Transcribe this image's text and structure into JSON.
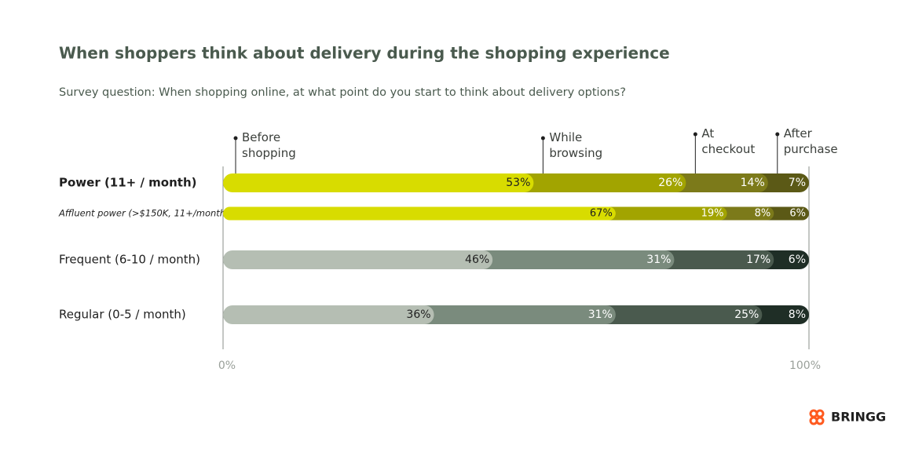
{
  "chart_data": {
    "type": "stacked-bar",
    "title": "When shoppers think about delivery during the shopping experience",
    "subtitle": "Survey question: When shopping online, at what point do you start to think about delivery options?",
    "categories": [
      "Power (11+ / month)",
      "Affluent power (>$150K, 11+/month)",
      "Frequent (6-10 / month)",
      "Regular (0-5 / month)"
    ],
    "series": [
      {
        "name": "Before shopping",
        "colors": [
          "#d8dc00",
          "#d8dc00",
          "#b5beb3",
          "#b5beb3"
        ],
        "values": [
          53,
          67,
          46,
          36
        ],
        "value_labels": [
          "53%",
          "67%",
          "46%",
          "36%"
        ]
      },
      {
        "name": "While browsing",
        "colors": [
          "#a2a400",
          "#a2a400",
          "#7a8b7d",
          "#7a8b7d"
        ],
        "values": [
          26,
          19,
          31,
          31
        ],
        "value_labels": [
          "26%",
          "19%",
          "31%",
          "31%"
        ]
      },
      {
        "name": "At checkout",
        "colors": [
          "#7c7a1a",
          "#7c7a1a",
          "#4a5a4e",
          "#4a5a4e"
        ],
        "values": [
          14,
          8,
          17,
          25
        ],
        "value_labels": [
          "14%",
          "8%",
          "17%",
          "25%"
        ]
      },
      {
        "name": "After purchase",
        "colors": [
          "#5b5916",
          "#5b5916",
          "#1f2e26",
          "#1f2e26"
        ],
        "values": [
          7,
          6,
          6,
          8
        ],
        "value_labels": [
          "7%",
          "6%",
          "6%",
          "8%"
        ]
      }
    ],
    "xlim": [
      0,
      100
    ],
    "xticks": [
      {
        "value": 0,
        "label": "0%"
      },
      {
        "value": 100,
        "label": "100%"
      }
    ],
    "logo": "BRINGG"
  }
}
